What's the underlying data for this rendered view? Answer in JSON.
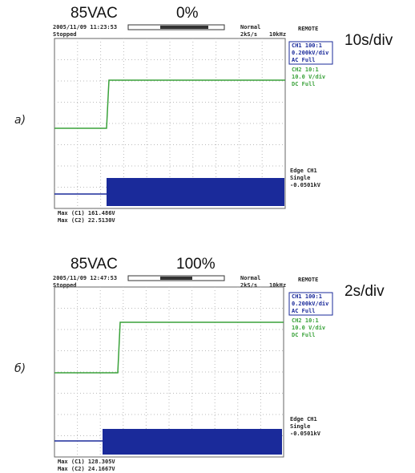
{
  "panels": [
    {
      "label": "а)",
      "voltage": "85VAC",
      "load": "0%",
      "timebase": "10s/div",
      "timestamp": "2005/11/09 11:23:53",
      "status": "Stopped",
      "mode": "Normal",
      "sample_rate": "2kS/s",
      "bandwidth": "10kHz",
      "remote": "REMOTE",
      "channels": [
        [
          "CH1 100:1",
          "0.200kV/div",
          "AC   Full"
        ],
        [
          "CH2 10:1",
          "10.0 V/div",
          "DC   Full"
        ]
      ],
      "trigger": [
        "Edge CH1",
        "Single",
        "-0.0501kV"
      ],
      "measurements": [
        "Max (C1)   161.486V",
        "Max (C2)   22.5130V"
      ]
    },
    {
      "label": "б)",
      "voltage": "85VAC",
      "load": "100%",
      "timebase": "2s/div",
      "timestamp": "2005/11/09 12:47:53",
      "status": "Stopped",
      "mode": "Normal",
      "sample_rate": "2kS/s",
      "bandwidth": "10kHz",
      "remote": "REMOTE",
      "channels": [
        [
          "CH1 100:1",
          "0.200kV/div",
          "AC   Full"
        ],
        [
          "CH2 10:1",
          "10.0 V/div",
          "DC   Full"
        ]
      ],
      "trigger": [
        "Edge CH1",
        "Single",
        "-0.0501kV"
      ],
      "measurements": [
        "Max (C1)   128.305V",
        "Max (C2)   24.1667V"
      ]
    }
  ]
}
